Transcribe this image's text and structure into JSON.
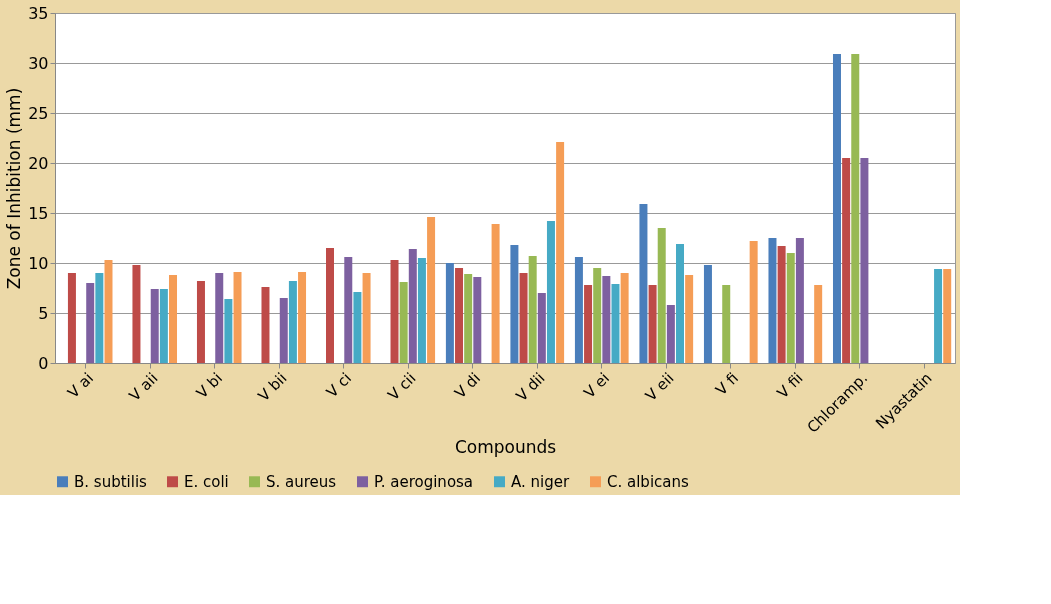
{
  "chart_data": {
    "type": "bar",
    "xlabel": "Compounds",
    "ylabel": "Zone of Inhibition (mm)",
    "categories": [
      "V ai",
      "V aii",
      "V bi",
      "V bii",
      "V ci",
      "V cii",
      "V di",
      "V dii",
      "V ei",
      "V eii",
      "V fi",
      "V fii",
      "Chloramp.",
      "Nyastatin"
    ],
    "series": [
      {
        "name": "B. subtilis",
        "color": "#4a7ebb",
        "values": [
          null,
          null,
          null,
          null,
          null,
          null,
          10.0,
          11.8,
          10.6,
          15.9,
          9.8,
          12.5,
          30.9,
          null
        ]
      },
      {
        "name": "E. coli",
        "color": "#be4b48",
        "values": [
          9.0,
          9.8,
          8.2,
          7.6,
          11.5,
          10.3,
          9.5,
          9.0,
          7.8,
          7.8,
          null,
          11.7,
          20.5,
          null
        ]
      },
      {
        "name": "S. aureus",
        "color": "#98b954",
        "values": [
          null,
          null,
          null,
          null,
          null,
          8.1,
          8.9,
          10.7,
          9.5,
          13.5,
          7.8,
          11.0,
          30.9,
          null
        ]
      },
      {
        "name": "P. aeroginosa",
        "color": "#7d60a0",
        "values": [
          8.0,
          7.4,
          9.0,
          6.5,
          10.6,
          11.4,
          8.6,
          7.0,
          8.7,
          5.8,
          null,
          12.5,
          20.5,
          null
        ]
      },
      {
        "name": "A. niger",
        "color": "#46aac5",
        "values": [
          9.0,
          7.4,
          6.4,
          8.2,
          7.1,
          10.5,
          null,
          14.2,
          7.9,
          11.9,
          null,
          null,
          null,
          9.4
        ]
      },
      {
        "name": "C. albicans",
        "color": "#f59d56",
        "values": [
          10.3,
          8.8,
          9.1,
          9.1,
          9.0,
          14.6,
          13.9,
          22.1,
          9.0,
          8.8,
          12.2,
          7.8,
          null,
          9.4
        ]
      }
    ],
    "ylim": [
      0,
      35
    ],
    "yticks": [
      0,
      5,
      10,
      15,
      20,
      25,
      30,
      35
    ],
    "grid": "y",
    "legend": "bottom"
  }
}
